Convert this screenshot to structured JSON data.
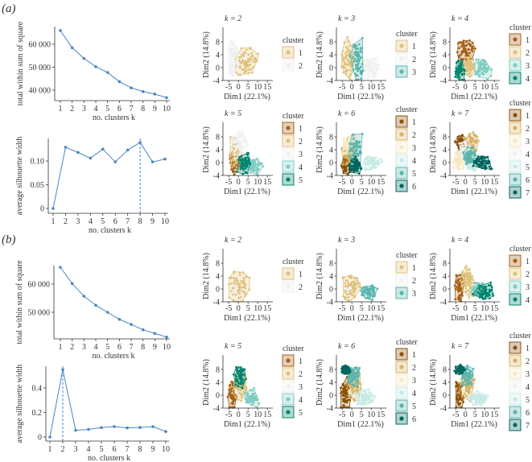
{
  "figure_labels": {
    "a": "(a)",
    "b": "(b)"
  },
  "colors": {
    "line": "#4a86c5"
  },
  "chart_data": [
    {
      "id": "a-wss",
      "type": "line",
      "xlabel": "no. clusters k",
      "ylabel": "total within sum of square",
      "x": [
        1,
        2,
        3,
        4,
        5,
        6,
        7,
        8,
        9,
        10
      ],
      "values": [
        66000,
        58500,
        53800,
        50200,
        47700,
        43700,
        41000,
        39400,
        38300,
        36700
      ],
      "yticks": [
        40000,
        50000,
        60000
      ],
      "ytick_labels": [
        "40 000",
        "50 000",
        "60 000"
      ],
      "xtick_labels": [
        "1",
        "2",
        "3",
        "4",
        "5",
        "6",
        "7",
        "8",
        "9",
        "10"
      ],
      "optimal_k": null
    },
    {
      "id": "a-sil",
      "type": "line",
      "xlabel": "no. clusters k",
      "ylabel": "average silhouette width",
      "x": [
        1,
        2,
        3,
        4,
        5,
        6,
        7,
        8,
        9,
        10
      ],
      "values": [
        0,
        0.129,
        0.118,
        0.106,
        0.125,
        0.098,
        0.123,
        0.139,
        0.098,
        0.104
      ],
      "yticks": [
        0,
        0.05,
        0.1
      ],
      "ytick_labels": [
        "0",
        "0.05",
        "0.10"
      ],
      "xtick_labels": [
        "1",
        "2",
        "3",
        "4",
        "5",
        "6",
        "7",
        "8",
        "9",
        "10"
      ],
      "optimal_k": 8
    },
    {
      "id": "b-wss",
      "type": "line",
      "xlabel": "no. clusters k",
      "ylabel": "total within sum of square",
      "x": [
        1,
        2,
        3,
        4,
        5,
        6,
        7,
        8,
        9,
        10
      ],
      "values": [
        66000,
        60200,
        55700,
        52500,
        50000,
        47500,
        45700,
        43800,
        42500,
        41200
      ],
      "yticks": [
        50000,
        60000
      ],
      "ytick_labels": [
        "50 000",
        "60 000"
      ],
      "xtick_labels": [
        "1",
        "2",
        "3",
        "4",
        "5",
        "6",
        "7",
        "8",
        "9",
        "10"
      ],
      "optimal_k": null
    },
    {
      "id": "b-sil",
      "type": "line",
      "xlabel": "no. clusters k",
      "ylabel": "average silhouette width",
      "x": [
        1,
        2,
        3,
        4,
        5,
        6,
        7,
        8,
        9,
        10
      ],
      "values": [
        0,
        0.55,
        0.055,
        0.062,
        0.077,
        0.085,
        0.075,
        0.078,
        0.085,
        0.045
      ],
      "yticks": [
        0,
        0.2,
        0.4
      ],
      "ytick_labels": [
        "0",
        "0.2",
        "0.4"
      ],
      "xtick_labels": [
        "1",
        "2",
        "3",
        "4",
        "5",
        "6",
        "7",
        "8",
        "9",
        "10"
      ],
      "optimal_k": 2
    }
  ],
  "cluster_plots": {
    "type": "scatter",
    "xlabel": "Dim1 (22.1%)",
    "ylabel": "Dim2 (14.8%)",
    "xticks": [
      "-5",
      "0",
      "5",
      "10",
      "15"
    ],
    "yticks": [
      "8",
      "4",
      "0",
      "-4"
    ],
    "xlim": [
      -8,
      17
    ],
    "ylim": [
      -4,
      12
    ],
    "legend_title": "cluster",
    "palettes": {
      "2": [
        "#dfc27d",
        "#f0f0f0"
      ],
      "3": [
        "#dfc27d",
        "#f0f0f0",
        "#5ab4ac"
      ],
      "4": [
        "#a6611a",
        "#dfc27d",
        "#80cdc1",
        "#018571"
      ],
      "5": [
        "#a6611a",
        "#dfc27d",
        "#f0f0f0",
        "#80cdc1",
        "#018571"
      ],
      "6": [
        "#8c510a",
        "#d8b365",
        "#f6e8c3",
        "#c7eae5",
        "#5ab4ac",
        "#01665e"
      ],
      "7": [
        "#8c510a",
        "#d8b365",
        "#f6e8c3",
        "#f0f0f0",
        "#c7eae5",
        "#5ab4ac",
        "#01665e"
      ]
    },
    "panels": [
      {
        "group": "a",
        "k": 2,
        "title": "k = 2",
        "clusters": [
          "1",
          "2"
        ]
      },
      {
        "group": "a",
        "k": 3,
        "title": "k = 3",
        "clusters": [
          "1",
          "2",
          "3"
        ]
      },
      {
        "group": "a",
        "k": 4,
        "title": "k = 4",
        "clusters": [
          "1",
          "2",
          "3",
          "4"
        ]
      },
      {
        "group": "a",
        "k": 5,
        "title": "k = 5",
        "clusters": [
          "1",
          "2",
          "3",
          "4",
          "5"
        ]
      },
      {
        "group": "a",
        "k": 6,
        "title": "k = 6",
        "clusters": [
          "1",
          "2",
          "3",
          "4",
          "5",
          "6"
        ]
      },
      {
        "group": "a",
        "k": 7,
        "title": "k = 7",
        "clusters": [
          "1",
          "2",
          "3",
          "4",
          "5",
          "6",
          "7"
        ]
      },
      {
        "group": "b",
        "k": 2,
        "title": "k = 2",
        "clusters": [
          "1",
          "2"
        ]
      },
      {
        "group": "b",
        "k": 3,
        "title": "k = 3",
        "clusters": [
          "1",
          "2",
          "3"
        ]
      },
      {
        "group": "b",
        "k": 4,
        "title": "k = 4",
        "clusters": [
          "1",
          "2",
          "3",
          "4"
        ]
      },
      {
        "group": "b",
        "k": 5,
        "title": "k = 5",
        "clusters": [
          "1",
          "2",
          "3",
          "4",
          "5"
        ]
      },
      {
        "group": "b",
        "k": 6,
        "title": "k = 6",
        "clusters": [
          "1",
          "2",
          "3",
          "4",
          "5",
          "6"
        ]
      },
      {
        "group": "b",
        "k": 7,
        "title": "k = 7",
        "clusters": [
          "1",
          "2",
          "3",
          "4",
          "5",
          "6",
          "7"
        ]
      }
    ]
  }
}
